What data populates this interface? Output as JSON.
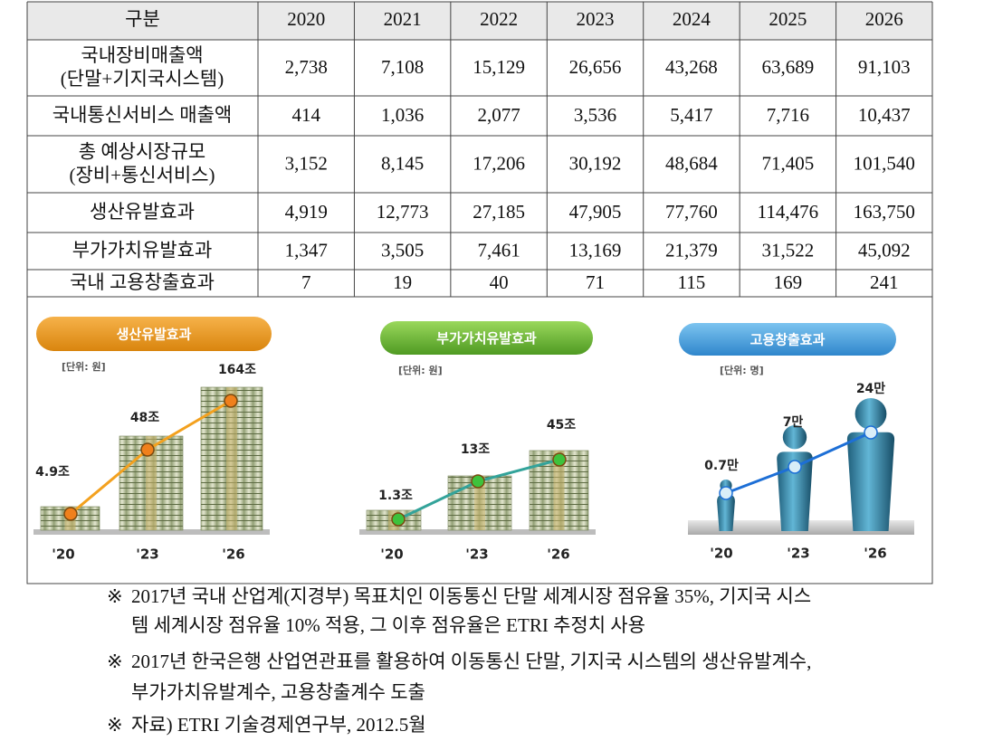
{
  "table": {
    "header": [
      "구분",
      "2020",
      "2021",
      "2022",
      "2023",
      "2024",
      "2025",
      "2026"
    ],
    "rows": [
      {
        "label": [
          "국내장비매출액",
          "(단말+기지국시스템)"
        ],
        "values": [
          "2,738",
          "7,108",
          "15,129",
          "26,656",
          "43,268",
          "63,689",
          "91,103"
        ]
      },
      {
        "label": [
          "국내통신서비스 매출액"
        ],
        "values": [
          "414",
          "1,036",
          "2,077",
          "3,536",
          "5,417",
          "7,716",
          "10,437"
        ]
      },
      {
        "label": [
          "총 예상시장규모",
          "(장비+통신서비스)"
        ],
        "values": [
          "3,152",
          "8,145",
          "17,206",
          "30,192",
          "48,684",
          "71,405",
          "101,540"
        ]
      },
      {
        "label": [
          "생산유발효과"
        ],
        "values": [
          "4,919",
          "12,773",
          "27,185",
          "47,905",
          "77,760",
          "114,476",
          "163,750"
        ]
      },
      {
        "label": [
          "부가가치유발효과"
        ],
        "values": [
          "1,347",
          "3,505",
          "7,461",
          "13,169",
          "21,379",
          "31,522",
          "45,092"
        ]
      },
      {
        "label": [
          "국내 고용창출효과"
        ],
        "values": [
          "7",
          "19",
          "40",
          "71",
          "115",
          "169",
          "241"
        ]
      }
    ]
  },
  "panels": [
    {
      "title": "생산유발효과",
      "unit": "[단위: 원]",
      "labels": [
        "4.9조",
        "48조",
        "164조"
      ],
      "years": [
        "'20",
        "'23",
        "'26"
      ]
    },
    {
      "title": "부가가치유발효과",
      "unit": "[단위: 원]",
      "labels": [
        "1.3조",
        "13조",
        "45조"
      ],
      "years": [
        "'20",
        "'23",
        "'26"
      ]
    },
    {
      "title": "고용창출효과",
      "unit": "[단위: 명]",
      "labels": [
        "0.7만",
        "7만",
        "24만"
      ],
      "years": [
        "'20",
        "'23",
        "'26"
      ]
    }
  ],
  "notes": [
    {
      "marker": "※",
      "lines": [
        "2017년 국내 산업계(지경부) 목표치인 이동통신 단말 세계시장 점유율 35%, 기지국 시스",
        "템 세계시장 점유율 10% 적용, 그 이후 점유율은 ETRI 추정치 사용"
      ]
    },
    {
      "marker": "※",
      "lines": [
        "2017년 한국은행 산업연관표를 활용하여 이동통신 단말, 기지국 시스템의 생산유발계수,",
        "부가가치유발계수, 고용창출계수 도출"
      ]
    },
    {
      "marker": "※",
      "lines": [
        "자료) ETRI 기술경제연구부, 2012.5월"
      ]
    }
  ]
}
